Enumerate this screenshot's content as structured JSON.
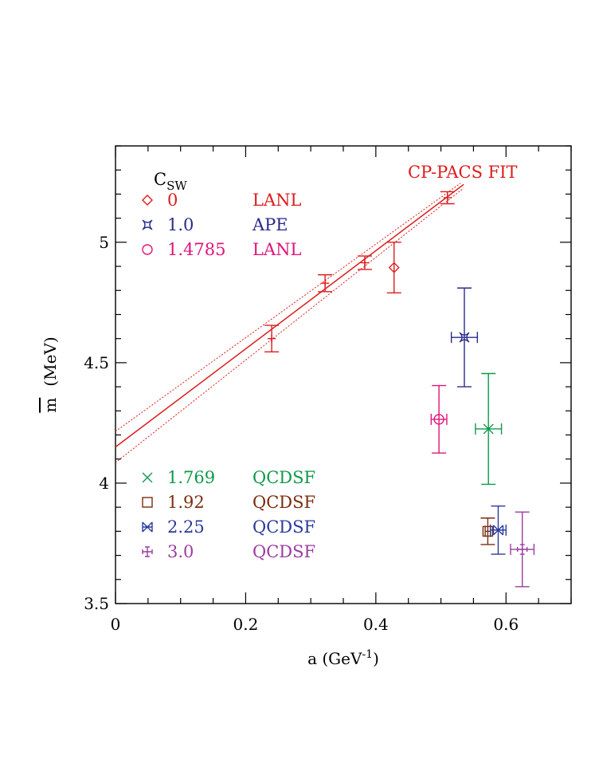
{
  "chart_data": {
    "type": "scatter",
    "title": "",
    "xlabel": "a (GeV",
    "xlabel_sup": "-1",
    "xlabel_close": ")",
    "ylabel": "(MeV)",
    "ylabel_symbol": "m",
    "xlim": [
      0,
      0.7
    ],
    "ylim": [
      3.5,
      5.4
    ],
    "x_ticks": [
      "0",
      "0.2",
      "0.4",
      "0.6"
    ],
    "y_ticks": [
      "3.5",
      "4",
      "4.5",
      "5"
    ],
    "legend_header": "C",
    "legend_header_sub": "SW",
    "fit_label": "CP-PACS FIT",
    "fit": {
      "color": "#dd1c1c",
      "central": [
        [
          0,
          4.15
        ],
        [
          0.535,
          5.24
        ]
      ],
      "upper": [
        [
          0,
          4.215
        ],
        [
          0.53,
          5.245
        ]
      ],
      "lower": [
        [
          0,
          4.085
        ],
        [
          0.535,
          5.225
        ]
      ]
    },
    "series": [
      {
        "csw": "0",
        "source": "LANL",
        "color": "#dd1c1c",
        "marker": "diamond",
        "points": [
          {
            "x": 0.428,
            "y": 4.895,
            "xerr": 0.0,
            "yerr": 0.105
          }
        ]
      },
      {
        "csw": "1.0",
        "source": "APE",
        "color": "#2a2a8c",
        "marker": "crossbox",
        "points": [
          {
            "x": 0.536,
            "y": 4.605,
            "xerr": 0.02,
            "yerr": 0.205
          }
        ]
      },
      {
        "csw": "1.4785",
        "source": "LANL",
        "color": "#e0147a",
        "marker": "circle",
        "points": [
          {
            "x": 0.497,
            "y": 4.265,
            "xerr": 0.012,
            "yerr": 0.14
          }
        ]
      },
      {
        "csw": "1.769",
        "source": "QCDSF",
        "color": "#0f9a4a",
        "marker": "x",
        "points": [
          {
            "x": 0.573,
            "y": 4.225,
            "xerr": 0.02,
            "yerr": 0.23
          }
        ]
      },
      {
        "csw": "1.92",
        "source": "QCDSF",
        "color": "#7a2e0e",
        "marker": "square",
        "points": [
          {
            "x": 0.572,
            "y": 3.8,
            "xerr": 0.004,
            "yerr": 0.055
          }
        ]
      },
      {
        "csw": "2.25",
        "source": "QCDSF",
        "color": "#2a3a9c",
        "marker": "xbar",
        "points": [
          {
            "x": 0.588,
            "y": 3.805,
            "xerr": 0.012,
            "yerr": 0.1
          }
        ]
      },
      {
        "csw": "3.0",
        "source": "QCDSF",
        "color": "#9a3ca0",
        "marker": "plusbar",
        "points": [
          {
            "x": 0.625,
            "y": 3.725,
            "xerr": 0.018,
            "yerr": 0.155
          }
        ]
      }
    ],
    "cp_pacs_points": {
      "color": "#dd1c1c",
      "points": [
        {
          "x": 0.24,
          "y": 4.6,
          "yerr": 0.055
        },
        {
          "x": 0.322,
          "y": 4.83,
          "yerr": 0.035
        },
        {
          "x": 0.383,
          "y": 4.915,
          "yerr": 0.028
        },
        {
          "x": 0.51,
          "y": 5.185,
          "yerr": 0.025
        }
      ]
    },
    "legend_placement": [
      "top-left",
      "bottom-left"
    ],
    "grid": false
  }
}
